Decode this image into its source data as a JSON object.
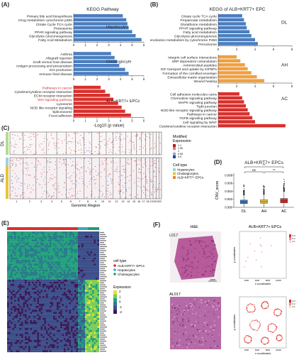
{
  "panels": {
    "A": {
      "label": "(A)",
      "title": "KEGG Pathway"
    },
    "B": {
      "label": "(B)",
      "title": "KEGG of ALB+KRT7+ EPC"
    },
    "C": {
      "label": "(C)"
    },
    "D": {
      "label": "(D)",
      "title": "ALB+KRT7+ EPCs"
    },
    "E": {
      "label": "(E)"
    },
    "F": {
      "label": "(F)"
    }
  },
  "chart_data": [
    {
      "id": "A",
      "type": "bar",
      "title": "KEGG Pathway",
      "xlabel": "-Log10 (p value)",
      "xlim": [
        0,
        6
      ],
      "xticks": [
        0,
        1,
        2,
        3,
        4,
        5,
        6
      ],
      "groups": [
        {
          "name": "Hepatocytes",
          "color": "#4a7ebf",
          "categories": [
            "Primary bile acid biosynthesis",
            "Drug metabolism cytochrome p450",
            "Citrate Cycle TCA cycle",
            "Proteasome",
            "PPAR signaling pathway",
            "Glycolysis Gluconeogenesis",
            "Fatty Acid Metabolism"
          ],
          "values": [
            4.2,
            4.5,
            4.6,
            4.7,
            5.0,
            5.3,
            5.8
          ]
        },
        {
          "name": "Cholangiocyte",
          "color": "#4a7ebf",
          "categories": [
            "Asthma",
            "Allograft rejection",
            "Graft versus host disease",
            "Antigen processing and presentation",
            "IGA production",
            "Immune fired disease"
          ],
          "values": [
            3.2,
            3.5,
            3.7,
            3.9,
            4.4,
            4.7
          ]
        },
        {
          "name": "ALB+KRT7+ EPCs",
          "color": "#d9302c",
          "categories": [
            "Pathways in cancer",
            "Cytokine/cytokine receptor interaction",
            "ECM receptor interaction",
            "Wnt signaling pathway",
            "Lysosome",
            "NOD like receptor signaling",
            "Spliceosome",
            "Focal adhesion"
          ],
          "values": [
            2.3,
            2.7,
            3.1,
            3.4,
            3.8,
            4.1,
            4.4,
            4.9
          ],
          "highlight": [
            "Pathways in cancer",
            "Wnt signaling pathway"
          ]
        }
      ]
    },
    {
      "id": "B",
      "type": "bar",
      "title": "KEGG of ALB+KRT7+ EPC",
      "xlabel": "-Log10 (p value)",
      "xlim": [
        0,
        8
      ],
      "xticks": [
        0,
        2,
        4,
        6,
        8
      ],
      "groups": [
        {
          "name": "DL",
          "color": "#4a7ebf",
          "categories": [
            "Citrate cycle TCA cycle",
            "Propanoate metabolism",
            "Glutathione metabolism",
            "PPAR signaling pathway",
            "Fatty acid metabolism",
            "Glycolysis gluconeogenesis",
            "Xenobiotics metabolism by cytochrome P450",
            "Peroxisome"
          ],
          "values": [
            2.6,
            2.8,
            3.0,
            3.1,
            3.4,
            3.6,
            4.0,
            4.3
          ]
        },
        {
          "name": "AH",
          "color": "#f0a040",
          "categories": [
            "Integrin cell surface interactions",
            "SRP dependent cotranslation",
            "Antimicrobial peptides",
            "IGF transport and uptake by IGFBPs",
            "Formation of the cornified envelope",
            "Extracellular matrix organization",
            "Wound healing"
          ],
          "values": [
            2.0,
            2.4,
            2.9,
            3.2,
            3.6,
            4.2,
            5.0
          ]
        },
        {
          "name": "AC",
          "color": "#d9302c",
          "categories": [
            "Cell adhesion molecules cams",
            "Chemokine signaling pathway",
            "MAPK signaling pathway",
            "Tight junction",
            "NOD like receptor signaling pathway",
            "Pathways in cancer",
            "TGFB signaling pathway",
            "Cell signaling by WNT",
            "Cytokine/cytokine receptor interaction"
          ],
          "values": [
            2.3,
            2.6,
            2.8,
            3.0,
            3.2,
            3.4,
            3.7,
            4.0,
            7.3
          ]
        }
      ]
    },
    {
      "id": "C",
      "type": "heatmap",
      "rows": [
        "DL",
        "ALD"
      ],
      "xlabel": "Genomic Region",
      "chromosomes": [
        "1",
        "2",
        "3",
        "4",
        "5",
        "6",
        "7",
        "8",
        "9",
        "10",
        "11",
        "12",
        "13",
        "14",
        "15",
        "16",
        "17",
        "18",
        "19",
        "20",
        "21",
        "22"
      ],
      "legend_title": "Modified Expression",
      "legend_ticks": [
        "1.1",
        "1.05",
        "1",
        "0.95",
        "0.9"
      ],
      "legend2_title": "Cell type",
      "cell_types": [
        {
          "name": "Hepatocytes",
          "color": "#9bd3e0"
        },
        {
          "name": "Cholangiocytes",
          "color": "#e7c53a"
        },
        {
          "name": "ALB+KRT7+ EPCs",
          "color": "#e7862c"
        }
      ]
    },
    {
      "id": "D",
      "type": "box",
      "title": "ALB+KRT7+ EPCs",
      "ylabel": "CNV_score",
      "categories": [
        "DL",
        "AH",
        "AC"
      ],
      "colors": [
        "#3a7cc0",
        "#e7c53a",
        "#d9302c"
      ],
      "median": [
        0.0013,
        0.0014,
        0.0016
      ],
      "q1": [
        0.0009,
        0.001,
        0.0011
      ],
      "q3": [
        0.0018,
        0.0019,
        0.0022
      ],
      "whisker_high": [
        0.0031,
        0.0032,
        0.004
      ],
      "ylim": [
        0,
        0.0085
      ],
      "yticks": [
        "0.000",
        "0.002",
        "0.004",
        "0.006",
        "0.008"
      ],
      "comparisons": [
        {
          "pair": [
            "DL",
            "AH"
          ],
          "label": "ns"
        },
        {
          "pair": [
            "AH",
            "AC"
          ],
          "label": "**"
        },
        {
          "pair": [
            "DL",
            "AC"
          ],
          "label": "**"
        }
      ]
    },
    {
      "id": "E",
      "type": "heatmap",
      "legend1_title": "cell type",
      "legend1": [
        {
          "name": "ALB+KRT7+ EPCs",
          "color": "#d9302c"
        },
        {
          "name": "Hepatocytes",
          "color": "#3aa6c8"
        },
        {
          "name": "Cholangiocytes",
          "color": "#1aa07a"
        }
      ],
      "legend2_title": "Expression",
      "legend2_ticks": [
        "2",
        "1",
        "0",
        "-1",
        "-2"
      ]
    },
    {
      "id": "F",
      "type": "spatial",
      "col_titles": [
        "H&E",
        "ALB+KRT7+ EPCs"
      ],
      "samples": [
        "L017",
        "AL017"
      ],
      "scale_bar": "1mm",
      "xlabel": "x coordinates",
      "ylabel": "y coordinates",
      "legend_ticks": [
        "0.3",
        "0.2",
        "0.1"
      ],
      "xticks": [
        "4000",
        "6000",
        "8000",
        "10000"
      ]
    }
  ]
}
